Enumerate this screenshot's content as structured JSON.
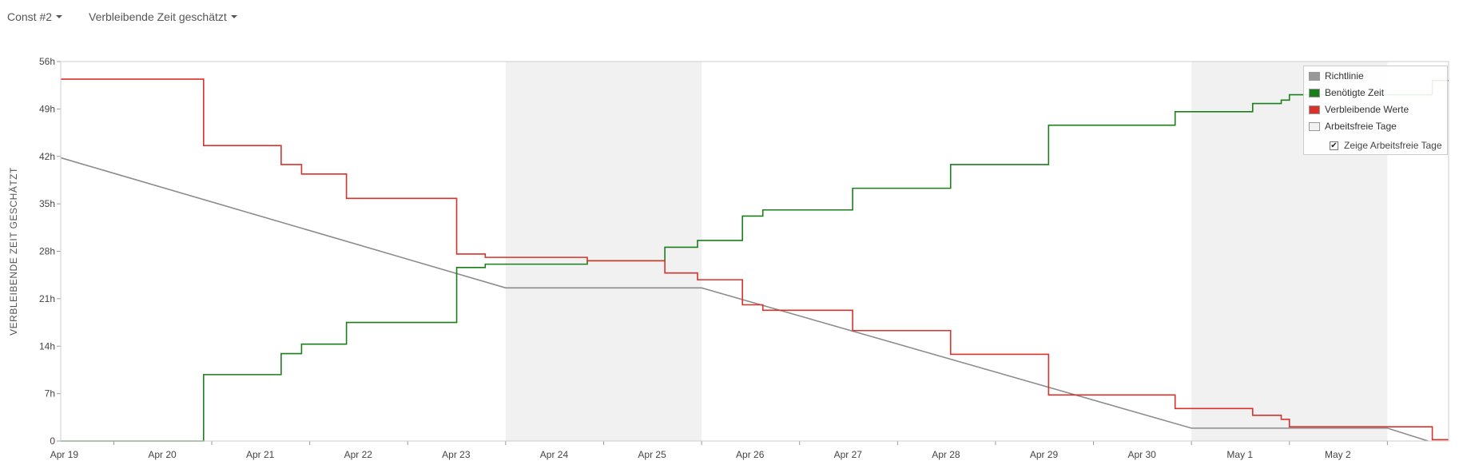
{
  "toolbar": {
    "sprint_select": "Const #2",
    "metric_select": "Verbleibende Zeit geschätzt"
  },
  "chart_data": {
    "type": "line",
    "ylabel": "VERBLEIBENDE ZEIT GESCHÄTZT",
    "y_unit": "h",
    "ylim": [
      0,
      56
    ],
    "yticks": [
      0,
      7,
      14,
      21,
      28,
      35,
      42,
      49,
      56
    ],
    "ytick_labels": [
      "0",
      "7h",
      "14h",
      "21h",
      "28h",
      "35h",
      "42h",
      "49h",
      "56h"
    ],
    "xlim": [
      "2025-04-18T11:00",
      "2025-05-02T15:00"
    ],
    "xticks": [
      {
        "date": "2025-04-19",
        "label": "Apr 19"
      },
      {
        "date": "2025-04-20",
        "label": "Apr 20"
      },
      {
        "date": "2025-04-21",
        "label": "Apr 21"
      },
      {
        "date": "2025-04-22",
        "label": "Apr 22"
      },
      {
        "date": "2025-04-23",
        "label": "Apr 23"
      },
      {
        "date": "2025-04-24",
        "label": "Apr 24"
      },
      {
        "date": "2025-04-25",
        "label": "Apr 25"
      },
      {
        "date": "2025-04-26",
        "label": "Apr 26"
      },
      {
        "date": "2025-04-27",
        "label": "Apr 27"
      },
      {
        "date": "2025-04-28",
        "label": "Apr 28"
      },
      {
        "date": "2025-04-29",
        "label": "Apr 29"
      },
      {
        "date": "2025-04-30",
        "label": "Apr 30"
      },
      {
        "date": "2025-05-01",
        "label": "May 1"
      },
      {
        "date": "2025-05-02",
        "label": "May 2"
      }
    ],
    "non_working_periods": [
      [
        "2025-04-23T00:00",
        "2025-04-25T00:00"
      ],
      [
        "2025-04-30T00:00",
        "2025-05-02T00:00"
      ]
    ],
    "series": [
      {
        "name": "Richtlinie",
        "color": "#8c8c8c",
        "step": false,
        "points": [
          [
            "2025-04-18T11:00",
            41.8
          ],
          [
            "2025-04-23T00:00",
            22.6
          ],
          [
            "2025-04-25T00:00",
            22.6
          ],
          [
            "2025-04-30T00:00",
            1.9
          ],
          [
            "2025-05-02T00:00",
            1.9
          ],
          [
            "2025-05-02T10:00",
            0
          ]
        ]
      },
      {
        "name": "Benötigte Zeit",
        "color": "#1a7f1a",
        "step": true,
        "points": [
          [
            "2025-04-18T11:00",
            0
          ],
          [
            "2025-04-19T22:00",
            9.8
          ],
          [
            "2025-04-20T17:00",
            12.9
          ],
          [
            "2025-04-20T22:00",
            14.3
          ],
          [
            "2025-04-21T09:00",
            17.5
          ],
          [
            "2025-04-22T12:00",
            25.6
          ],
          [
            "2025-04-22T19:00",
            26.1
          ],
          [
            "2025-04-23T20:00",
            26.6
          ],
          [
            "2025-04-24T15:00",
            28.6
          ],
          [
            "2025-04-24T23:00",
            29.6
          ],
          [
            "2025-04-25T10:00",
            33.2
          ],
          [
            "2025-04-25T15:00",
            34.1
          ],
          [
            "2025-04-26T13:00",
            37.3
          ],
          [
            "2025-04-27T13:00",
            40.8
          ],
          [
            "2025-04-28T13:00",
            46.6
          ],
          [
            "2025-04-29T20:00",
            48.6
          ],
          [
            "2025-04-30T15:00",
            49.8
          ],
          [
            "2025-04-30T22:00",
            50.3
          ],
          [
            "2025-05-01T00:00",
            51.1
          ],
          [
            "2025-05-02T11:00",
            53.2
          ]
        ]
      },
      {
        "name": "Verbleibende Werte",
        "color": "#d9322a",
        "step": true,
        "points": [
          [
            "2025-04-18T11:00",
            53.4
          ],
          [
            "2025-04-19T22:00",
            43.6
          ],
          [
            "2025-04-20T17:00",
            40.8
          ],
          [
            "2025-04-20T22:00",
            39.4
          ],
          [
            "2025-04-21T09:00",
            35.8
          ],
          [
            "2025-04-22T12:00",
            27.6
          ],
          [
            "2025-04-22T19:00",
            27.1
          ],
          [
            "2025-04-23T20:00",
            26.6
          ],
          [
            "2025-04-24T15:00",
            24.8
          ],
          [
            "2025-04-24T23:00",
            23.8
          ],
          [
            "2025-04-25T10:00",
            20.1
          ],
          [
            "2025-04-25T15:00",
            19.3
          ],
          [
            "2025-04-26T13:00",
            16.3
          ],
          [
            "2025-04-27T13:00",
            12.8
          ],
          [
            "2025-04-28T13:00",
            6.8
          ],
          [
            "2025-04-29T20:00",
            4.8
          ],
          [
            "2025-04-30T15:00",
            3.8
          ],
          [
            "2025-04-30T22:00",
            3.2
          ],
          [
            "2025-05-01T00:00",
            2.1
          ],
          [
            "2025-05-02T11:00",
            0.2
          ]
        ]
      }
    ],
    "legend": {
      "position": "top-right",
      "items": [
        {
          "label": "Richtlinie",
          "color": "#999999"
        },
        {
          "label": "Benötigte Zeit",
          "color": "#1a7f1a"
        },
        {
          "label": "Verbleibende Werte",
          "color": "#d9322a"
        },
        {
          "label": "Arbeitsfreie Tage",
          "color": "#f2f2f2"
        }
      ],
      "checkbox_label": "Zeige Arbeitsfreie Tage",
      "checkbox_checked": true,
      "checkbox_glyph": "✔"
    }
  }
}
